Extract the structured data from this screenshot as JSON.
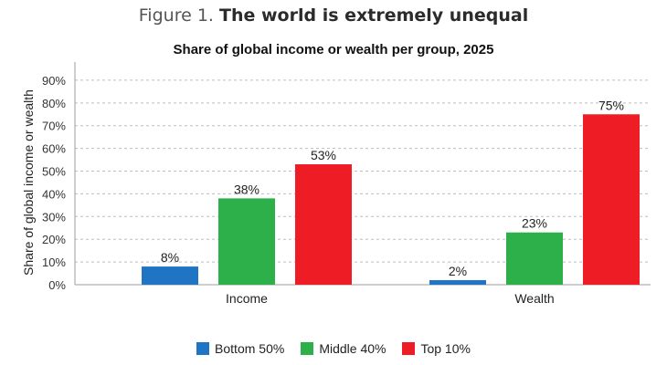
{
  "figure": {
    "number_label": "Figure 1.",
    "title": "The world is extremely unequal"
  },
  "chart_data": {
    "type": "bar",
    "title": "Share of global income or wealth per group, 2025",
    "xlabel": "",
    "ylabel": "Share of global income or wealth",
    "categories": [
      "Income",
      "Wealth"
    ],
    "ylim": [
      0,
      100
    ],
    "yticks": [
      "0%",
      "10%",
      "20%",
      "30%",
      "40%",
      "50%",
      "60%",
      "70%",
      "80%",
      "90%"
    ],
    "grid": true,
    "legend_position": "bottom-center",
    "series": [
      {
        "name": "Bottom 50%",
        "values": [
          8,
          2
        ],
        "labels": [
          "8%",
          "2%"
        ],
        "color": "#1f74c4"
      },
      {
        "name": "Middle 40%",
        "values": [
          38,
          23
        ],
        "labels": [
          "38%",
          "23%"
        ],
        "color": "#2db04a"
      },
      {
        "name": "Top 10%",
        "values": [
          53,
          75
        ],
        "labels": [
          "53%",
          "75%"
        ],
        "color": "#ee1c25"
      }
    ]
  }
}
